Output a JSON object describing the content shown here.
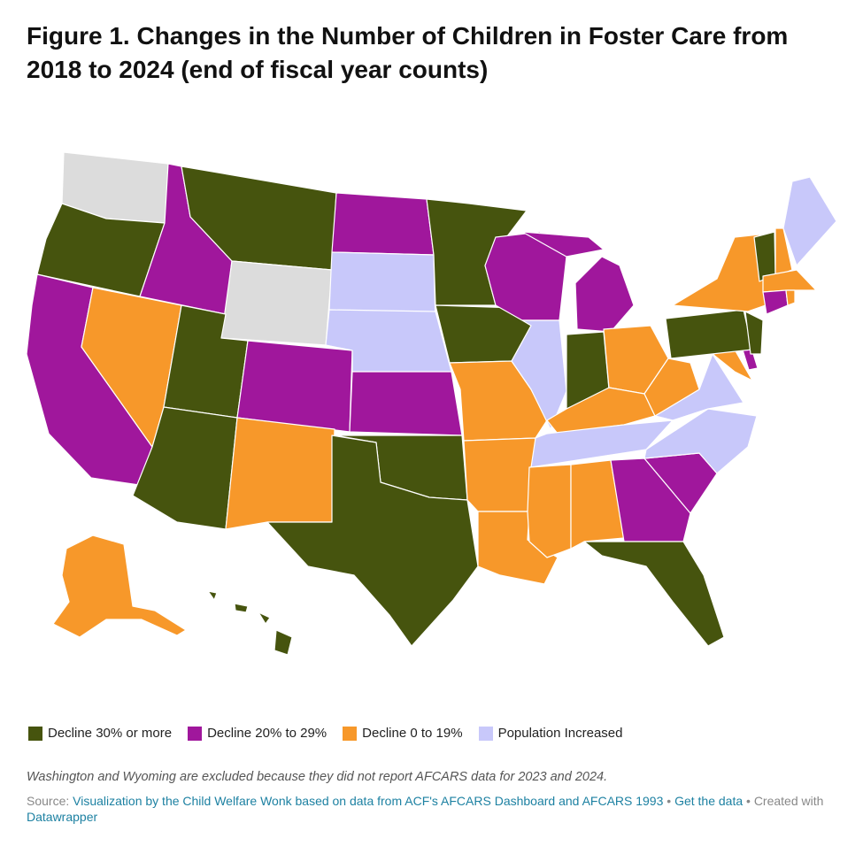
{
  "title": "Figure 1. Changes in the Number of Children in Foster Care from 2018 to 2024 (end of fiscal year counts)",
  "colors": {
    "decline_30_plus": "#46540e",
    "decline_20_29": "#a0179c",
    "decline_0_19": "#f7982a",
    "increased": "#c8c8fa",
    "no_data": "#dcdcdc"
  },
  "legend": [
    {
      "label": "Decline 30% or more",
      "color": "#46540e"
    },
    {
      "label": "Decline 20% to 29%",
      "color": "#a0179c"
    },
    {
      "label": "Decline 0 to 19%",
      "color": "#f7982a"
    },
    {
      "label": "Population Increased",
      "color": "#c8c8fa"
    }
  ],
  "note": "Washington and Wyoming are excluded because they did not report AFCARS data for 2023 and 2024.",
  "source": {
    "prefix": "Source:",
    "link_text": "Visualization by the Child Welfare Wonk based on data from ACF's AFCARS Dashboard and AFCARS 1993",
    "sep1": "•",
    "get_data": "Get the data",
    "sep2": "• Created with",
    "created_with": "Datawrapper"
  },
  "map_data": {
    "categories": {
      "decline_30_plus": [
        "Oregon",
        "Montana",
        "Utah",
        "Arizona",
        "Minnesota",
        "Iowa",
        "Oklahoma",
        "Texas",
        "Indiana",
        "Pennsylvania",
        "New Jersey",
        "Vermont",
        "Florida",
        "Hawaii"
      ],
      "decline_20_29": [
        "California",
        "Idaho",
        "Colorado",
        "Kansas",
        "North Dakota",
        "Wisconsin",
        "Michigan",
        "Georgia",
        "South Carolina",
        "Connecticut",
        "Delaware"
      ],
      "decline_0_19": [
        "Nevada",
        "New Mexico",
        "Missouri",
        "Arkansas",
        "Louisiana",
        "Mississippi",
        "Alabama",
        "Kentucky",
        "Ohio",
        "West Virginia",
        "Maryland",
        "New York",
        "Massachusetts",
        "New Hampshire",
        "Rhode Island",
        "Alaska"
      ],
      "increased": [
        "South Dakota",
        "Nebraska",
        "Illinois",
        "Tennessee",
        "Virginia",
        "North Carolina",
        "Maine"
      ],
      "no_data": [
        "Washington",
        "Wyoming"
      ]
    }
  }
}
